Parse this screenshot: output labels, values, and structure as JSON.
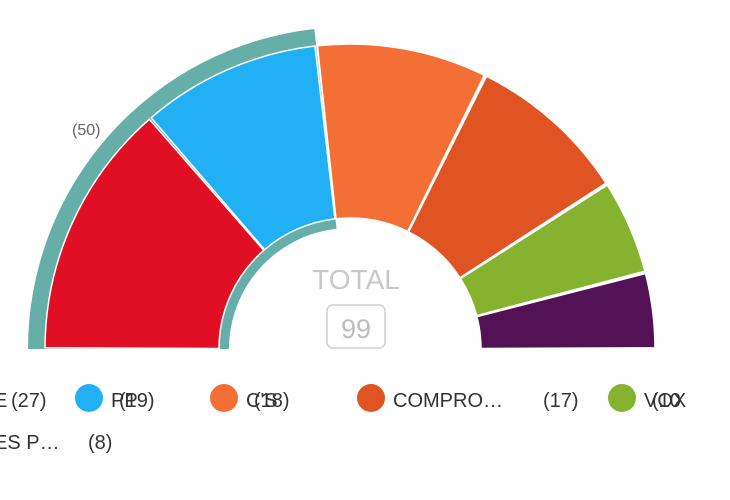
{
  "chart_data": {
    "type": "pie",
    "subtype": "parliament-semicircle",
    "total_label": "TOTAL",
    "total_value": 99,
    "majority_label": "(50)",
    "majority_color": "#66afa9",
    "slices": [
      {
        "name": "E",
        "value": 27,
        "color": "#e00f24"
      },
      {
        "name": "PP",
        "value": 19,
        "color": "#22b0f5"
      },
      {
        "name": "C'S",
        "value": 18,
        "color": "#f46f36"
      },
      {
        "name": "COMPRO…",
        "value": 17,
        "color": "#e05322"
      },
      {
        "name": "VOX",
        "value": 10,
        "color": "#86b32f"
      },
      {
        "name": "ES P…",
        "value": 8,
        "color": "#531156"
      }
    ],
    "legend": [
      {
        "name": "E",
        "value_text": "(27)",
        "color": "#e00f24"
      },
      {
        "name": "PP",
        "value_text": "(19)",
        "color": "#22b0f5"
      },
      {
        "name": "C'S",
        "value_text": "(18)",
        "color": "#f46f36"
      },
      {
        "name": "COMPRO…",
        "value_text": "(17)",
        "color": "#e05322"
      },
      {
        "name": "VOX",
        "value_text": "(10",
        "color": "#86b32f"
      },
      {
        "name": "ES P…",
        "value_text": "(8)",
        "color": "#531156"
      }
    ]
  }
}
